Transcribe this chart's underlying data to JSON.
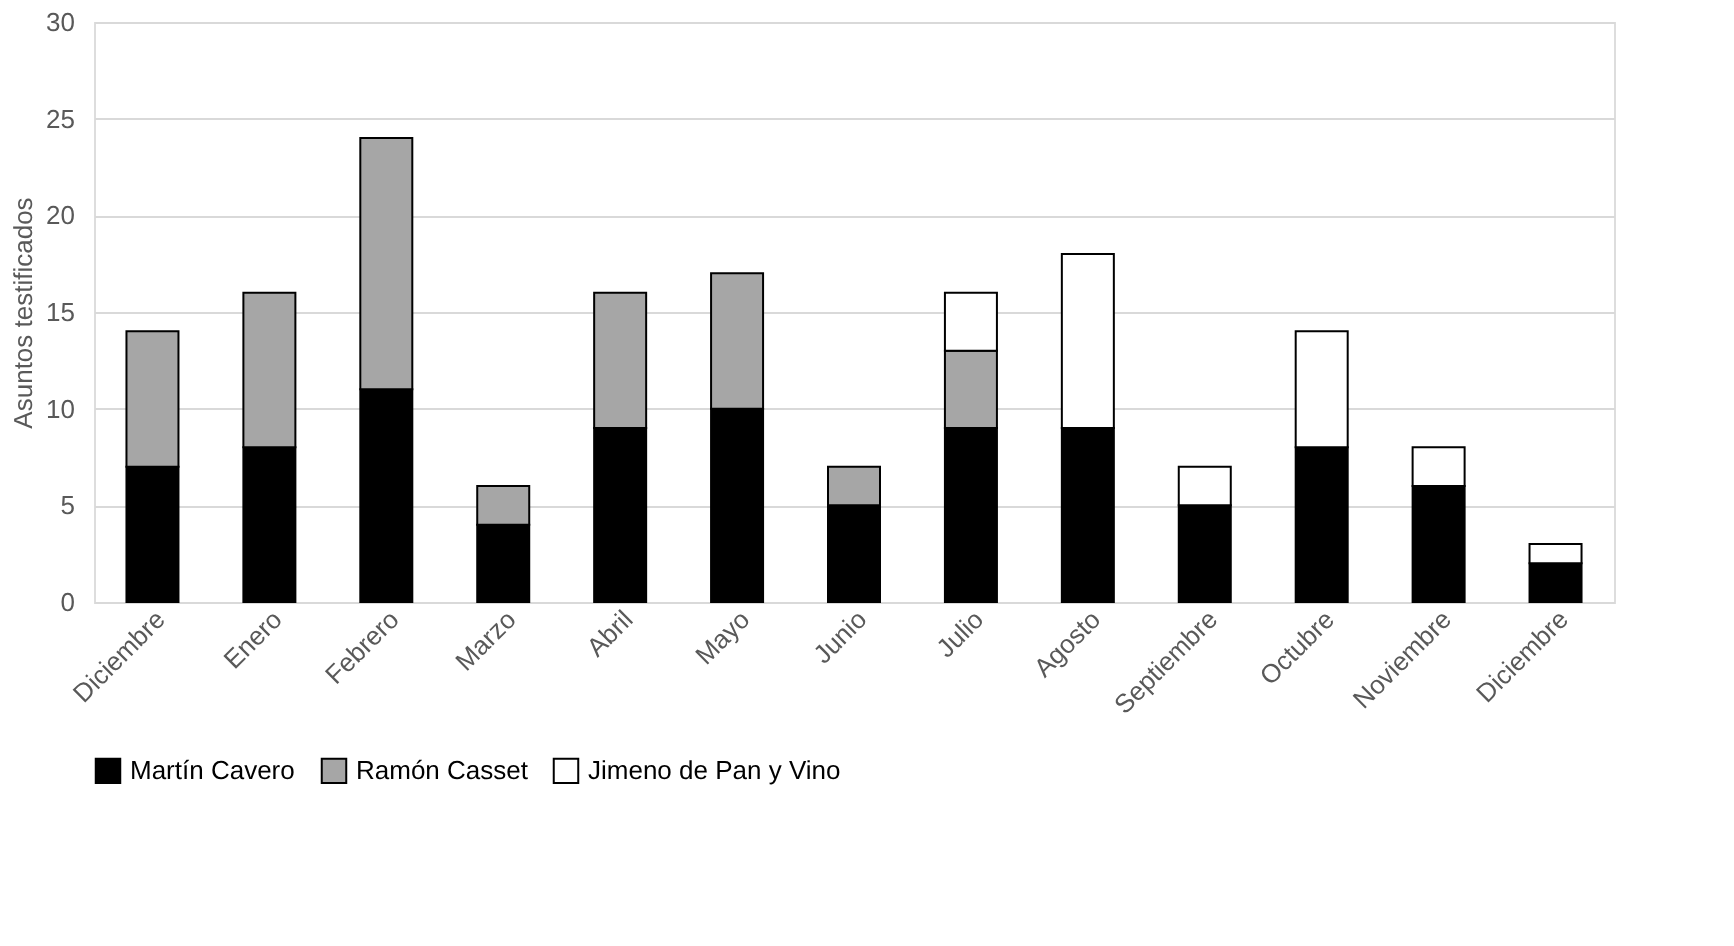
{
  "chart_data": {
    "type": "bar",
    "stacked": true,
    "ylabel": "Asuntos testificados",
    "categories": [
      "Diciembre",
      "Enero",
      "Febrero",
      "Marzo",
      "Abril",
      "Mayo",
      "Junio",
      "Julio",
      "Agosto",
      "Septiembre",
      "Octubre",
      "Noviembre",
      "Diciembre"
    ],
    "series": [
      {
        "name": "Martín Cavero",
        "color": "#000000",
        "values": [
          7,
          8,
          11,
          4,
          9,
          10,
          5,
          9,
          9,
          5,
          8,
          6,
          2
        ]
      },
      {
        "name": "Ramón Casset",
        "color": "#a6a6a6",
        "values": [
          7,
          8,
          13,
          2,
          7,
          7,
          2,
          4,
          null,
          null,
          null,
          null,
          null
        ]
      },
      {
        "name": "Jimeno de Pan y Vino",
        "color": "#ffffff",
        "values": [
          null,
          null,
          null,
          null,
          null,
          null,
          null,
          3,
          9,
          2,
          6,
          2,
          1
        ]
      }
    ],
    "ylim": [
      0,
      30
    ],
    "yticks": [
      0,
      5,
      10,
      15,
      20,
      25,
      30
    ],
    "grid": "y",
    "legend": "bottom"
  }
}
